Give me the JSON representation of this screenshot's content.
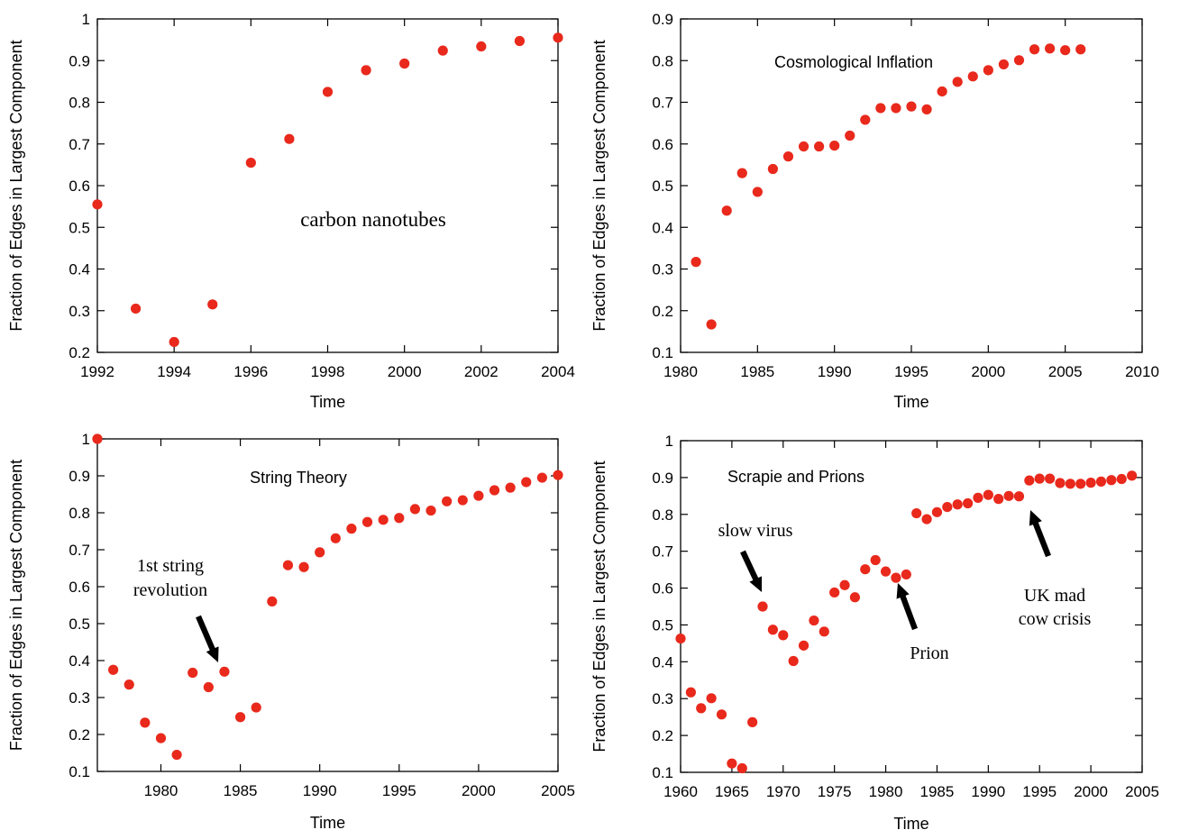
{
  "chart_data": [
    {
      "type": "scatter",
      "title": "",
      "annotation": "carbon nanotubes",
      "xlabel": "Time",
      "ylabel": "Fraction of Edges in Largest Component",
      "xlim": [
        1992,
        2004
      ],
      "ylim": [
        0.2,
        1.0
      ],
      "xticks": [
        "1992",
        "1994",
        "1996",
        "1998",
        "2000",
        "2002",
        "2004"
      ],
      "yticks": [
        "0.2",
        "0.3",
        "0.4",
        "0.5",
        "0.6",
        "0.7",
        "0.8",
        "0.9",
        "1"
      ],
      "marker_color": "#e8291c",
      "x": [
        1992,
        1993,
        1994,
        1995,
        1996,
        1997,
        1998,
        1999,
        2000,
        2001,
        2002,
        2003,
        2004
      ],
      "y": [
        0.555,
        0.305,
        0.225,
        0.315,
        0.655,
        0.712,
        0.825,
        0.877,
        0.893,
        0.924,
        0.934,
        0.947,
        0.955
      ]
    },
    {
      "type": "scatter",
      "title": "",
      "annotation": "Cosmological Inflation",
      "xlabel": "Time",
      "ylabel": "Fraction of Edges in Largest Component",
      "xlim": [
        1980,
        2010
      ],
      "ylim": [
        0.1,
        0.9
      ],
      "xticks": [
        "1980",
        "1985",
        "1990",
        "1995",
        "2000",
        "2005",
        "2010"
      ],
      "yticks": [
        "0.1",
        "0.2",
        "0.3",
        "0.4",
        "0.5",
        "0.6",
        "0.7",
        "0.8",
        "0.9"
      ],
      "marker_color": "#e8291c",
      "x": [
        1981,
        1982,
        1983,
        1984,
        1985,
        1986,
        1987,
        1988,
        1989,
        1990,
        1991,
        1992,
        1993,
        1994,
        1995,
        1996,
        1997,
        1998,
        1999,
        2000,
        2001,
        2002,
        2003,
        2004,
        2005,
        2006
      ],
      "y": [
        0.317,
        0.167,
        0.44,
        0.53,
        0.485,
        0.54,
        0.57,
        0.594,
        0.594,
        0.596,
        0.62,
        0.658,
        0.686,
        0.686,
        0.69,
        0.683,
        0.726,
        0.749,
        0.762,
        0.777,
        0.791,
        0.801,
        0.827,
        0.829,
        0.825,
        0.827
      ]
    },
    {
      "type": "scatter",
      "title": "",
      "annotation": "String Theory",
      "annotation2": [
        "1st string",
        "revolution"
      ],
      "xlabel": "Time",
      "ylabel": "Fraction of Edges in Largest Component",
      "xlim": [
        1976,
        2005
      ],
      "ylim": [
        0.1,
        1.0
      ],
      "xticks": [
        "1980",
        "1985",
        "1990",
        "1995",
        "2000",
        "2005"
      ],
      "yticks": [
        "0.1",
        "0.2",
        "0.3",
        "0.4",
        "0.5",
        "0.6",
        "0.7",
        "0.8",
        "0.9",
        "1"
      ],
      "marker_color": "#e8291c",
      "x": [
        1976,
        1977,
        1978,
        1979,
        1980,
        1981,
        1982,
        1983,
        1984,
        1985,
        1986,
        1987,
        1988,
        1989,
        1990,
        1991,
        1992,
        1993,
        1994,
        1995,
        1996,
        1997,
        1998,
        1999,
        2000,
        2001,
        2002,
        2003,
        2004,
        2005
      ],
      "y": [
        1.0,
        0.375,
        0.335,
        0.232,
        0.19,
        0.145,
        0.367,
        0.328,
        0.37,
        0.247,
        0.273,
        0.56,
        0.658,
        0.653,
        0.693,
        0.731,
        0.757,
        0.775,
        0.781,
        0.786,
        0.81,
        0.806,
        0.831,
        0.834,
        0.846,
        0.861,
        0.868,
        0.883,
        0.895,
        0.902
      ]
    },
    {
      "type": "scatter",
      "title": "",
      "annotation": "Scrapie and Prions",
      "annotation_slow": "slow virus",
      "annotation_prion": "Prion",
      "annotation_uk": [
        "UK mad",
        "cow crisis"
      ],
      "xlabel": "Time",
      "ylabel": "Fraction of Edges in Largest Component",
      "xlim": [
        1960,
        2005
      ],
      "ylim": [
        0.1,
        1.0
      ],
      "xticks": [
        "1960",
        "1965",
        "1970",
        "1975",
        "1980",
        "1985",
        "1990",
        "1995",
        "2000",
        "2005"
      ],
      "yticks": [
        "0.1",
        "0.2",
        "0.3",
        "0.4",
        "0.5",
        "0.6",
        "0.7",
        "0.8",
        "0.9",
        "1"
      ],
      "marker_color": "#e8291c",
      "x": [
        1960,
        1961,
        1962,
        1963,
        1964,
        1965,
        1966,
        1967,
        1968,
        1969,
        1970,
        1971,
        1972,
        1973,
        1974,
        1975,
        1976,
        1977,
        1978,
        1979,
        1980,
        1981,
        1982,
        1983,
        1984,
        1985,
        1986,
        1987,
        1988,
        1989,
        1990,
        1991,
        1992,
        1993,
        1994,
        1995,
        1996,
        1997,
        1998,
        1999,
        2000,
        2001,
        2002,
        2003,
        2004
      ],
      "y": [
        0.463,
        0.317,
        0.274,
        0.301,
        0.257,
        0.124,
        0.111,
        0.236,
        0.55,
        0.487,
        0.472,
        0.402,
        0.444,
        0.512,
        0.482,
        0.588,
        0.608,
        0.575,
        0.651,
        0.676,
        0.645,
        0.628,
        0.637,
        0.803,
        0.787,
        0.806,
        0.82,
        0.827,
        0.83,
        0.845,
        0.853,
        0.842,
        0.85,
        0.849,
        0.892,
        0.897,
        0.897,
        0.885,
        0.883,
        0.883,
        0.886,
        0.889,
        0.893,
        0.896,
        0.905
      ]
    }
  ]
}
